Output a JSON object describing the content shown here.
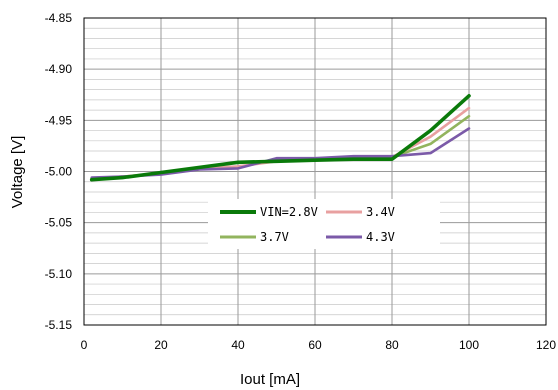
{
  "chart_data": {
    "type": "line",
    "title": "",
    "xlabel": "Iout [mA]",
    "ylabel": "Voltage  [V]",
    "xlim": [
      0,
      120
    ],
    "ylim": [
      -5.15,
      -4.85
    ],
    "x_ticks": [
      "0",
      "20",
      "40",
      "60",
      "80",
      "100",
      "120"
    ],
    "y_ticks": [
      "-4.85",
      "-4.90",
      "-4.95",
      "-5.00",
      "-5.05",
      "-5.10",
      "-5.15"
    ],
    "grid": true,
    "legend_position": "center",
    "series": [
      {
        "name": "VIN=2.8V",
        "color": "#0a7a0a",
        "x": [
          2,
          10,
          20,
          30,
          40,
          50,
          60,
          70,
          80,
          90,
          100
        ],
        "y": [
          -5.008,
          -5.006,
          -5.001,
          -4.996,
          -4.991,
          -4.99,
          -4.989,
          -4.988,
          -4.988,
          -4.96,
          -4.926
        ]
      },
      {
        "name": "3.4V",
        "color": "#e8a0a0",
        "x": [
          2,
          10,
          20,
          30,
          40,
          50,
          60,
          70,
          80,
          90,
          100
        ],
        "y": [
          -5.007,
          -5.005,
          -5.002,
          -4.997,
          -4.995,
          -4.99,
          -4.989,
          -4.986,
          -4.986,
          -4.966,
          -4.938
        ]
      },
      {
        "name": "3.7V",
        "color": "#92b45e",
        "x": [
          2,
          10,
          20,
          30,
          40,
          50,
          60,
          70,
          80,
          90,
          100
        ],
        "y": [
          -5.007,
          -5.005,
          -5.002,
          -4.997,
          -4.996,
          -4.988,
          -4.988,
          -4.986,
          -4.986,
          -4.973,
          -4.946
        ]
      },
      {
        "name": "4.3V",
        "color": "#7b5aa8",
        "x": [
          2,
          10,
          20,
          30,
          40,
          50,
          60,
          70,
          80,
          90,
          100
        ],
        "y": [
          -5.006,
          -5.005,
          -5.003,
          -4.998,
          -4.997,
          -4.987,
          -4.987,
          -4.985,
          -4.985,
          -4.982,
          -4.958
        ]
      }
    ]
  }
}
